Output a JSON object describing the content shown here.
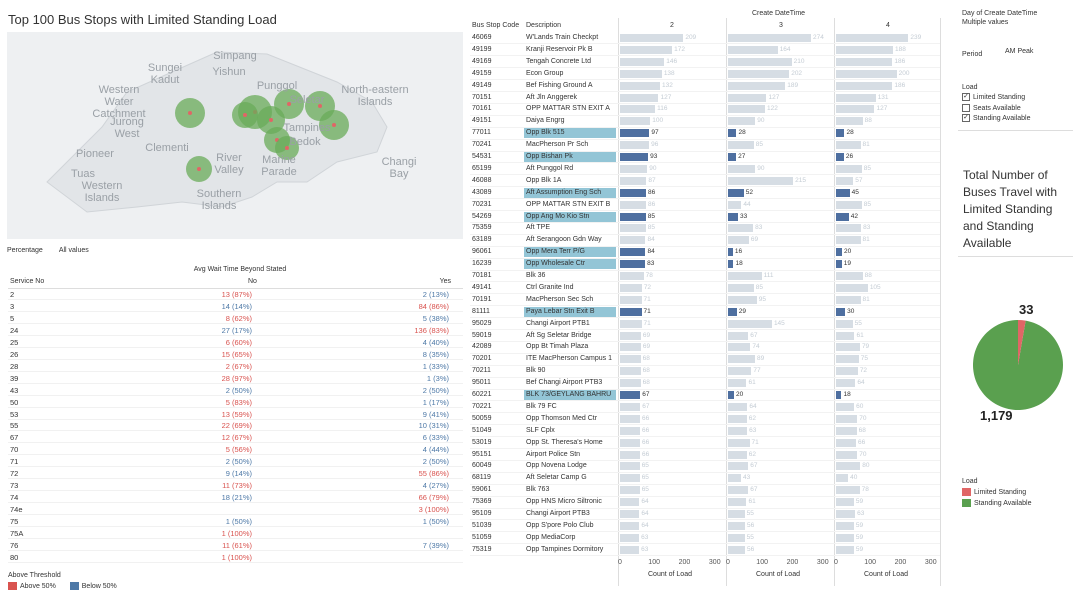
{
  "title": "Top 100 Bus Stops with Limited Standing Load",
  "map": {
    "labels": [
      {
        "text": "Simpang",
        "x": 228,
        "y": 18
      },
      {
        "text": "Sungei\nKadut",
        "x": 158,
        "y": 30
      },
      {
        "text": "Yishun",
        "x": 222,
        "y": 34
      },
      {
        "text": "Punggol",
        "x": 270,
        "y": 48
      },
      {
        "text": "Western\nWater\nCatchment",
        "x": 112,
        "y": 52
      },
      {
        "text": "Seletar",
        "x": 300,
        "y": 62
      },
      {
        "text": "North-eastern\nIslands",
        "x": 368,
        "y": 52
      },
      {
        "text": "Jurong\nWest",
        "x": 120,
        "y": 84
      },
      {
        "text": "Tampines",
        "x": 300,
        "y": 90
      },
      {
        "text": "Pioneer",
        "x": 88,
        "y": 116
      },
      {
        "text": "Clementi",
        "x": 160,
        "y": 110
      },
      {
        "text": "Bedok",
        "x": 298,
        "y": 104
      },
      {
        "text": "Tuas",
        "x": 76,
        "y": 136
      },
      {
        "text": "Western\nIslands",
        "x": 95,
        "y": 148
      },
      {
        "text": "River\nValley",
        "x": 222,
        "y": 120
      },
      {
        "text": "Marine\nParade",
        "x": 272,
        "y": 122
      },
      {
        "text": "Changi\nBay",
        "x": 392,
        "y": 124
      },
      {
        "text": "Southern\nIslands",
        "x": 212,
        "y": 156
      }
    ],
    "circles": [
      {
        "cx": 183,
        "cy": 81,
        "r": 15
      },
      {
        "cx": 248,
        "cy": 80,
        "r": 17
      },
      {
        "cx": 264,
        "cy": 88,
        "r": 14
      },
      {
        "cx": 282,
        "cy": 72,
        "r": 15
      },
      {
        "cx": 313,
        "cy": 74,
        "r": 15
      },
      {
        "cx": 327,
        "cy": 93,
        "r": 15
      },
      {
        "cx": 270,
        "cy": 108,
        "r": 13
      },
      {
        "cx": 280,
        "cy": 116,
        "r": 12
      },
      {
        "cx": 192,
        "cy": 137,
        "r": 13
      },
      {
        "cx": 238,
        "cy": 83,
        "r": 13
      }
    ]
  },
  "filters": {
    "percentage_label": "Percentage",
    "percentage_value": "All values",
    "day_label": "Day of Create DateTime",
    "day_value": "Multiple values",
    "period_label": "Period",
    "period_value": "AM Peak",
    "load_label": "Load",
    "load_options": [
      {
        "label": "Limited Standing",
        "checked": true
      },
      {
        "label": "Seats Available",
        "checked": false
      },
      {
        "label": "Standing Available",
        "checked": true
      }
    ]
  },
  "service_table": {
    "title": "Avg Wait Time Beyond Stated",
    "col_service": "Service No",
    "col_no": "No",
    "col_yes": "Yes",
    "rows": [
      {
        "service": "2",
        "no": "13 (87%)",
        "no_c": "red",
        "yes": "2 (13%)",
        "yes_c": "blue"
      },
      {
        "service": "3",
        "no": "14 (14%)",
        "no_c": "blue",
        "yes": "84 (86%)",
        "yes_c": "red"
      },
      {
        "service": "5",
        "no": "8 (62%)",
        "no_c": "red",
        "yes": "5 (38%)",
        "yes_c": "blue"
      },
      {
        "service": "24",
        "no": "27 (17%)",
        "no_c": "blue",
        "yes": "136 (83%)",
        "yes_c": "red"
      },
      {
        "service": "25",
        "no": "6 (60%)",
        "no_c": "red",
        "yes": "4 (40%)",
        "yes_c": "blue"
      },
      {
        "service": "26",
        "no": "15 (65%)",
        "no_c": "red",
        "yes": "8 (35%)",
        "yes_c": "blue"
      },
      {
        "service": "28",
        "no": "2 (67%)",
        "no_c": "red",
        "yes": "1 (33%)",
        "yes_c": "blue"
      },
      {
        "service": "39",
        "no": "28 (97%)",
        "no_c": "red",
        "yes": "1 (3%)",
        "yes_c": "blue"
      },
      {
        "service": "43",
        "no": "2 (50%)",
        "no_c": "blue",
        "yes": "2 (50%)",
        "yes_c": "blue"
      },
      {
        "service": "50",
        "no": "5 (83%)",
        "no_c": "red",
        "yes": "1 (17%)",
        "yes_c": "blue"
      },
      {
        "service": "53",
        "no": "13 (59%)",
        "no_c": "red",
        "yes": "9 (41%)",
        "yes_c": "blue"
      },
      {
        "service": "55",
        "no": "22 (69%)",
        "no_c": "red",
        "yes": "10 (31%)",
        "yes_c": "blue"
      },
      {
        "service": "67",
        "no": "12 (67%)",
        "no_c": "red",
        "yes": "6 (33%)",
        "yes_c": "blue"
      },
      {
        "service": "70",
        "no": "5 (56%)",
        "no_c": "red",
        "yes": "4 (44%)",
        "yes_c": "blue"
      },
      {
        "service": "71",
        "no": "2 (50%)",
        "no_c": "blue",
        "yes": "2 (50%)",
        "yes_c": "blue"
      },
      {
        "service": "72",
        "no": "9 (14%)",
        "no_c": "blue",
        "yes": "55 (86%)",
        "yes_c": "red"
      },
      {
        "service": "73",
        "no": "11 (73%)",
        "no_c": "red",
        "yes": "4 (27%)",
        "yes_c": "blue"
      },
      {
        "service": "74",
        "no": "18 (21%)",
        "no_c": "blue",
        "yes": "66 (79%)",
        "yes_c": "red"
      },
      {
        "service": "74e",
        "no": "",
        "no_c": "blue",
        "yes": "3 (100%)",
        "yes_c": "red"
      },
      {
        "service": "75",
        "no": "1 (50%)",
        "no_c": "blue",
        "yes": "1 (50%)",
        "yes_c": "blue"
      },
      {
        "service": "75A",
        "no": "1 (100%)",
        "no_c": "red",
        "yes": "",
        "yes_c": "blue"
      },
      {
        "service": "76",
        "no": "11 (61%)",
        "no_c": "red",
        "yes": "7 (39%)",
        "yes_c": "blue"
      },
      {
        "service": "80",
        "no": "1 (100%)",
        "no_c": "red",
        "yes": "",
        "yes_c": "blue"
      }
    ]
  },
  "threshold_legend": {
    "title": "Above Threshold",
    "items": [
      {
        "label": "Above 50%",
        "color": "#d9534f"
      },
      {
        "label": "Below 50%",
        "color": "#4e79a7"
      }
    ]
  },
  "bus_chart": {
    "col_code": "Bus Stop Code",
    "col_desc": "Description",
    "header": "Create DateTime",
    "day_headers": [
      "2",
      "3",
      "4"
    ],
    "axis_ticks": [
      "0",
      "100",
      "200",
      "300"
    ],
    "axis_title": "Count of Load",
    "xmax": 330,
    "rows": [
      {
        "code": "46069",
        "desc": "W'Lands Train Checkpt",
        "v": [
          209,
          274,
          239
        ],
        "hl": false
      },
      {
        "code": "49199",
        "desc": "Kranji Reservoir Pk B",
        "v": [
          172,
          164,
          188
        ],
        "hl": false
      },
      {
        "code": "49169",
        "desc": "Tengah Concrete Ltd",
        "v": [
          146,
          210,
          186
        ],
        "hl": false
      },
      {
        "code": "49159",
        "desc": "Econ Group",
        "v": [
          138,
          202,
          200
        ],
        "hl": false
      },
      {
        "code": "49149",
        "desc": "Bef Fishing Ground A",
        "v": [
          132,
          189,
          186
        ],
        "hl": false
      },
      {
        "code": "70151",
        "desc": "Aft Jln Anggerek",
        "v": [
          127,
          127,
          131
        ],
        "hl": false
      },
      {
        "code": "70161",
        "desc": "OPP MATTAR STN EXIT A",
        "v": [
          116,
          122,
          127
        ],
        "hl": false
      },
      {
        "code": "49151",
        "desc": "Daiya Engrg",
        "v": [
          100,
          90,
          88
        ],
        "hl": false
      },
      {
        "code": "77011",
        "desc": "Opp Blk 515",
        "v": [
          97,
          28,
          28
        ],
        "hl": true
      },
      {
        "code": "70241",
        "desc": "MacPherson Pr Sch",
        "v": [
          96,
          85,
          81
        ],
        "hl": false
      },
      {
        "code": "54531",
        "desc": "Opp Bishan Pk",
        "v": [
          93,
          27,
          26
        ],
        "hl": true
      },
      {
        "code": "65199",
        "desc": "Aft Punggol Rd",
        "v": [
          90,
          90,
          85
        ],
        "hl": false
      },
      {
        "code": "46088",
        "desc": "Opp Blk 1A",
        "v": [
          87,
          215,
          57
        ],
        "hl": false
      },
      {
        "code": "43089",
        "desc": "Aft Assumption Eng Sch",
        "v": [
          86,
          52,
          45
        ],
        "hl": true
      },
      {
        "code": "70231",
        "desc": "OPP MATTAR STN EXIT B",
        "v": [
          86,
          44,
          85
        ],
        "hl": false
      },
      {
        "code": "54269",
        "desc": "Opp Ang Mo Kio Stn",
        "v": [
          85,
          33,
          42
        ],
        "hl": true
      },
      {
        "code": "75359",
        "desc": "Aft TPE",
        "v": [
          85,
          83,
          83
        ],
        "hl": false
      },
      {
        "code": "63189",
        "desc": "Aft Serangoon Gdn Way",
        "v": [
          84,
          69,
          81
        ],
        "hl": false
      },
      {
        "code": "96061",
        "desc": "Opp Mera Terr P/G",
        "v": [
          84,
          16,
          20
        ],
        "hl": true
      },
      {
        "code": "16239",
        "desc": "Opp Wholesale Ctr",
        "v": [
          83,
          18,
          19
        ],
        "hl": true
      },
      {
        "code": "70181",
        "desc": "Blk 36",
        "v": [
          78,
          111,
          88
        ],
        "hl": false
      },
      {
        "code": "49141",
        "desc": "Ctrl Granite Ind",
        "v": [
          72,
          85,
          105
        ],
        "hl": false
      },
      {
        "code": "70191",
        "desc": "MacPherson Sec Sch",
        "v": [
          71,
          95,
          81
        ],
        "hl": false
      },
      {
        "code": "81111",
        "desc": "Paya Lebar Stn Exit B",
        "v": [
          71,
          29,
          30
        ],
        "hl": true
      },
      {
        "code": "95029",
        "desc": "Changi Airport PTB1",
        "v": [
          71,
          145,
          55
        ],
        "hl": false
      },
      {
        "code": "59019",
        "desc": "Aft Sg Seletar Bridge",
        "v": [
          69,
          67,
          61
        ],
        "hl": false
      },
      {
        "code": "42089",
        "desc": "Opp Bt Timah Plaza",
        "v": [
          69,
          74,
          79
        ],
        "hl": false
      },
      {
        "code": "70201",
        "desc": "ITE MacPherson Campus 1",
        "v": [
          68,
          89,
          75
        ],
        "hl": false
      },
      {
        "code": "70211",
        "desc": "Blk 90",
        "v": [
          68,
          77,
          72
        ],
        "hl": false
      },
      {
        "code": "95011",
        "desc": "Bef Changi Airport PTB3",
        "v": [
          68,
          61,
          64
        ],
        "hl": false
      },
      {
        "code": "60221",
        "desc": "BLK 73/GEYLANG BAHRU",
        "v": [
          67,
          20,
          18
        ],
        "hl": true
      },
      {
        "code": "70221",
        "desc": "Blk 79 FC",
        "v": [
          67,
          64,
          60
        ],
        "hl": false
      },
      {
        "code": "50059",
        "desc": "Opp Thomson Med Ctr",
        "v": [
          66,
          62,
          70
        ],
        "hl": false
      },
      {
        "code": "51049",
        "desc": "SLF Cplx",
        "v": [
          66,
          63,
          68
        ],
        "hl": false
      },
      {
        "code": "53019",
        "desc": "Opp St. Theresa's Home",
        "v": [
          66,
          71,
          66
        ],
        "hl": false
      },
      {
        "code": "95151",
        "desc": "Airport Police Stn",
        "v": [
          66,
          62,
          70
        ],
        "hl": false
      },
      {
        "code": "60049",
        "desc": "Opp Novena Lodge",
        "v": [
          65,
          67,
          80
        ],
        "hl": false
      },
      {
        "code": "68119",
        "desc": "Aft Seletar Camp G",
        "v": [
          65,
          43,
          40
        ],
        "hl": false
      },
      {
        "code": "59061",
        "desc": "Blk 763",
        "v": [
          65,
          67,
          78
        ],
        "hl": false
      },
      {
        "code": "75369",
        "desc": "Opp HNS Micro Siltronic",
        "v": [
          64,
          61,
          59
        ],
        "hl": false
      },
      {
        "code": "95109",
        "desc": "Changi Airport PTB3",
        "v": [
          64,
          55,
          63
        ],
        "hl": false
      },
      {
        "code": "51039",
        "desc": "Opp S'pore Polo Club",
        "v": [
          64,
          56,
          59
        ],
        "hl": false
      },
      {
        "code": "51059",
        "desc": "Opp MediaCorp",
        "v": [
          63,
          55,
          59
        ],
        "hl": false
      },
      {
        "code": "75319",
        "desc": "Opp Tampines Dormitory",
        "v": [
          63,
          56,
          59
        ],
        "hl": false
      }
    ]
  },
  "pie": {
    "title": "Total Number of Buses Travel with Limited Standing and Standing Available",
    "limited": 33,
    "standing": 1179,
    "limited_label": "33",
    "standing_label": "1,179",
    "legend_title": "Load",
    "legend": [
      {
        "label": "Limited Standing",
        "color": "#e06666"
      },
      {
        "label": "Standing Available",
        "color": "#5aa04f"
      }
    ],
    "colors": {
      "limited": "#e06666",
      "standing": "#5aa04f"
    }
  }
}
